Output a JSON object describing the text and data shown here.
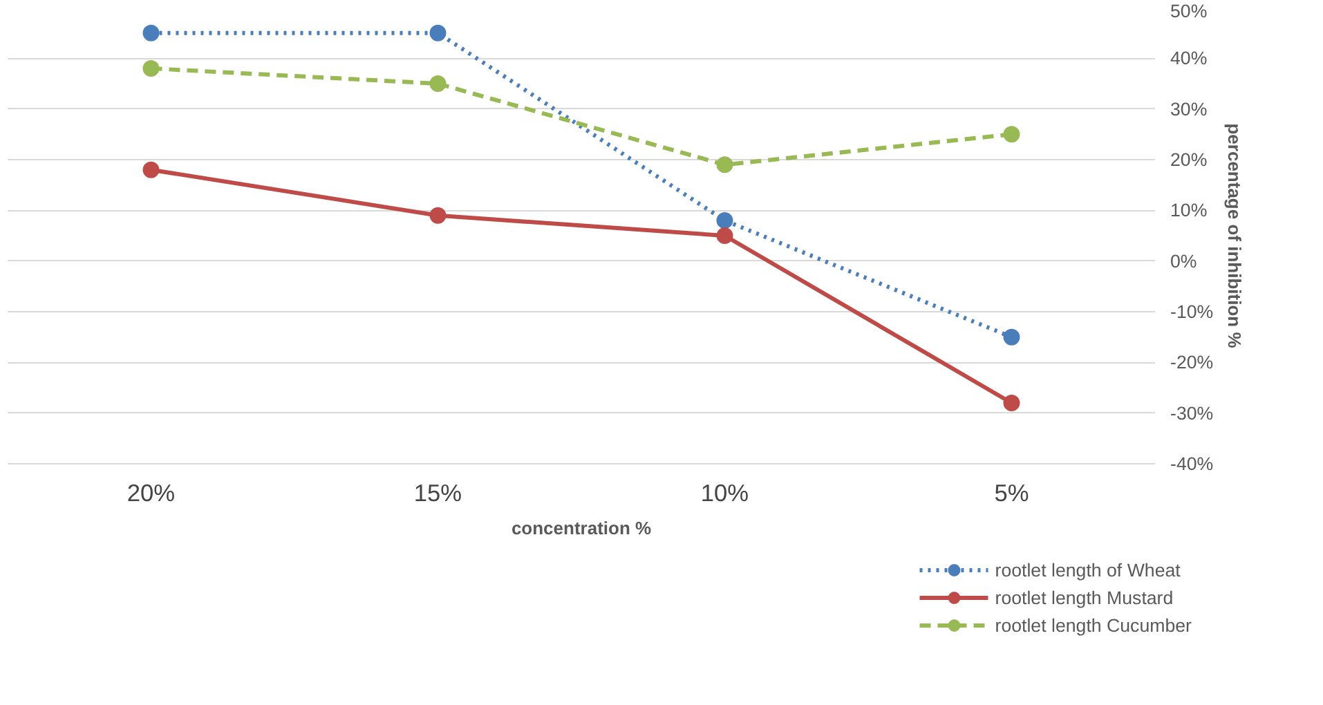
{
  "chart_data": {
    "type": "line",
    "xlabel": "concentration %",
    "ylabel": "percentage of inhibition %",
    "categories": [
      "20%",
      "15%",
      "10%",
      "5%"
    ],
    "series": [
      {
        "name": "rootlet length of Wheat",
        "color": "#4a7ebb",
        "line_style": "dotted",
        "values": [
          45,
          45,
          8,
          -15
        ]
      },
      {
        "name": "rootlet length Mustard",
        "color": "#be4b48",
        "line_style": "solid",
        "values": [
          18,
          9,
          5,
          -28
        ]
      },
      {
        "name": "rootlet length Cucumber",
        "color": "#98b954",
        "line_style": "dashed",
        "values": [
          38,
          35,
          19,
          25
        ]
      }
    ],
    "ylim": [
      -40,
      50
    ],
    "yticks": [
      {
        "value": -40,
        "label": "-40%"
      },
      {
        "value": -30,
        "label": "-30%"
      },
      {
        "value": -20,
        "label": "-20%"
      },
      {
        "value": -10,
        "label": "-10%"
      },
      {
        "value": 0,
        "label": "0%"
      },
      {
        "value": 10,
        "label": "10%"
      },
      {
        "value": 20,
        "label": "20%"
      },
      {
        "value": 30,
        "label": "30%"
      },
      {
        "value": 40,
        "label": "40%"
      },
      {
        "value": 50,
        "label": "50%"
      }
    ],
    "grid": "y",
    "legend": "bottom right",
    "marker": "circle"
  }
}
